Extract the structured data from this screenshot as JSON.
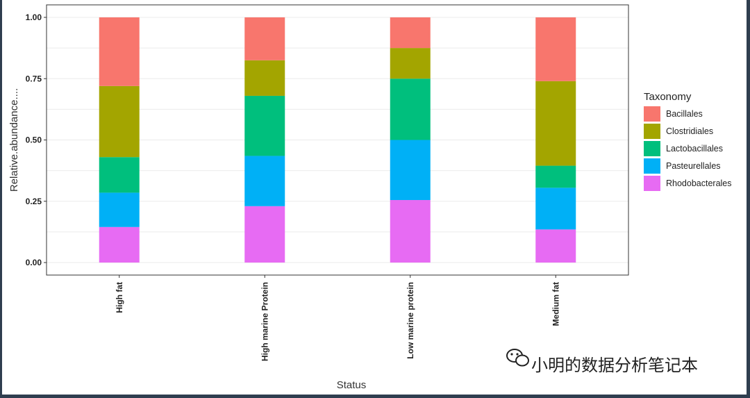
{
  "chart_data": {
    "type": "bar",
    "stacked": true,
    "categories": [
      "High fat",
      "High marine Protein",
      "Low marine protein",
      "Medium fat"
    ],
    "series": [
      {
        "name": "Rhodobacterales",
        "color": "#E76BF3",
        "values": [
          0.145,
          0.23,
          0.255,
          0.135
        ]
      },
      {
        "name": "Pasteurellales",
        "color": "#00B0F6",
        "values": [
          0.14,
          0.205,
          0.245,
          0.17
        ]
      },
      {
        "name": "Lactobacillales",
        "color": "#00BF7D",
        "values": [
          0.145,
          0.245,
          0.25,
          0.09
        ]
      },
      {
        "name": "Clostridiales",
        "color": "#A3A500",
        "values": [
          0.29,
          0.145,
          0.125,
          0.345
        ]
      },
      {
        "name": "Bacillales",
        "color": "#F8766D",
        "values": [
          0.28,
          0.175,
          0.125,
          0.26
        ]
      }
    ],
    "legend_order": [
      "Bacillales",
      "Clostridiales",
      "Lactobacillales",
      "Pasteurellales",
      "Rhodobacterales"
    ],
    "xlabel": "Status",
    "ylabel": "Relative.abundance....",
    "ylim": [
      0,
      1
    ],
    "yticks": [
      "0.00",
      "0.25",
      "0.50",
      "0.75",
      "1.00"
    ],
    "legend_title": "Taxonomy",
    "legend_position": "right",
    "grid": true
  },
  "watermark": {
    "text": "小明的数据分析笔记本",
    "icon": "wechat-icon"
  }
}
